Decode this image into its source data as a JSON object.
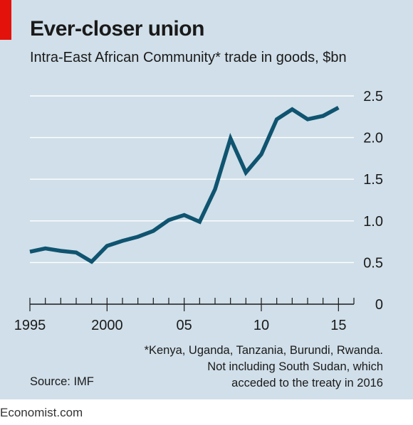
{
  "header": {
    "title": "Ever-closer union",
    "subtitle": "Intra-East African Community* trade in goods, $bn"
  },
  "footer": {
    "footnote_lines": [
      "*Kenya, Uganda, Tanzania, Burundi, Rwanda.",
      "Not including South Sudan, which",
      "acceded to the treaty in 2016"
    ],
    "source": "Source: IMF",
    "brand": "Economist.com"
  },
  "colors": {
    "panel": "#d0dfe9",
    "line": "#0f5470",
    "grid": "#ffffff",
    "accent": "#e3120b"
  },
  "chart_data": {
    "type": "line",
    "title": "Ever-closer union",
    "subtitle": "Intra-East African Community* trade in goods, $bn",
    "xlabel": "",
    "ylabel": "",
    "xlim": [
      1995,
      2016
    ],
    "ylim": [
      0,
      2.5
    ],
    "grid": true,
    "y_axis_side": "right",
    "x_tick_values": [
      1995,
      2000,
      2005,
      2010,
      2015
    ],
    "x_tick_labels": [
      "1995",
      "2000",
      "05",
      "10",
      "15"
    ],
    "y_tick_values": [
      0,
      0.5,
      1.0,
      1.5,
      2.0,
      2.5
    ],
    "y_tick_labels": [
      "0",
      "0.5",
      "1.0",
      "1.5",
      "2.0",
      "2.5"
    ],
    "series": [
      {
        "x": [
          1995,
          1996,
          1997,
          1998,
          1999,
          2000,
          2001,
          2002,
          2003,
          2004,
          2005,
          2006,
          2007,
          2008,
          2009,
          2010,
          2011,
          2012,
          2013,
          2014,
          2015
        ],
        "values": [
          0.63,
          0.67,
          0.64,
          0.62,
          0.51,
          0.7,
          0.76,
          0.81,
          0.88,
          1.01,
          1.07,
          0.99,
          1.38,
          1.99,
          1.58,
          1.8,
          2.22,
          2.34,
          2.22,
          2.26,
          2.36
        ]
      }
    ]
  }
}
